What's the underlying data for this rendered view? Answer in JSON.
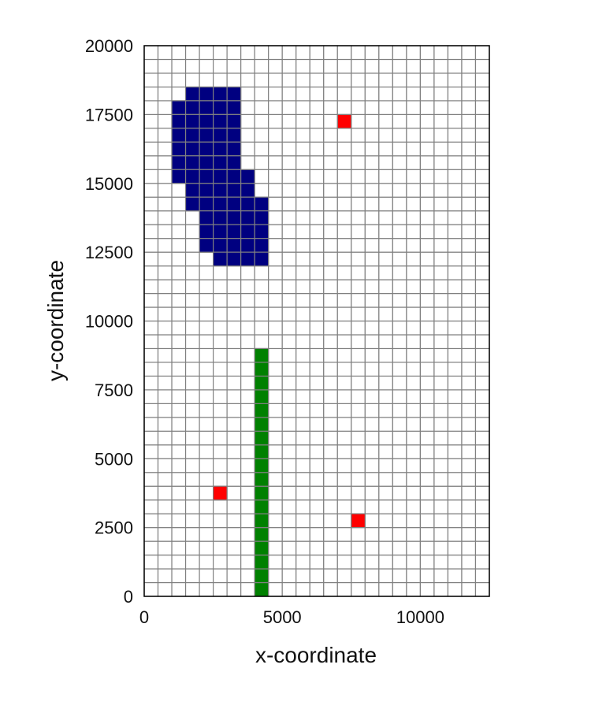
{
  "chart_data": {
    "type": "heatmap",
    "title": "",
    "xlabel": "x-coordinate",
    "ylabel": "y-coordinate",
    "xlim": [
      0,
      12500
    ],
    "ylim": [
      0,
      20000
    ],
    "cell_size": 500,
    "x_ticks": [
      0,
      5000,
      10000
    ],
    "y_ticks": [
      0,
      2500,
      5000,
      7500,
      10000,
      12500,
      15000,
      17500,
      20000
    ],
    "grid": true,
    "colors": {
      "background_cell": "#ffffff",
      "grid_line": "#808080",
      "frame": "#000000",
      "zone_a": "#000080",
      "zone_b": "#008000",
      "points": "#ff0000"
    },
    "zone_a_rows": [
      {
        "y": 18000,
        "x_from": 1500,
        "x_to": 3500
      },
      {
        "y": 17500,
        "x_from": 1000,
        "x_to": 3500
      },
      {
        "y": 17000,
        "x_from": 1000,
        "x_to": 3500
      },
      {
        "y": 16500,
        "x_from": 1000,
        "x_to": 3500
      },
      {
        "y": 16000,
        "x_from": 1000,
        "x_to": 3500
      },
      {
        "y": 15500,
        "x_from": 1000,
        "x_to": 3500
      },
      {
        "y": 15000,
        "x_from": 1000,
        "x_to": 4000
      },
      {
        "y": 14500,
        "x_from": 1500,
        "x_to": 4000
      },
      {
        "y": 14000,
        "x_from": 1500,
        "x_to": 4500
      },
      {
        "y": 13500,
        "x_from": 2000,
        "x_to": 4500
      },
      {
        "y": 13000,
        "x_from": 2000,
        "x_to": 4500
      },
      {
        "y": 12500,
        "x_from": 2000,
        "x_to": 4500
      },
      {
        "y": 12000,
        "x_from": 2500,
        "x_to": 4500
      }
    ],
    "zone_b_column": {
      "x": 4000,
      "y_from": 0,
      "y_to": 9000
    },
    "points": [
      {
        "x": 2500,
        "y": 3500
      },
      {
        "x": 7000,
        "y": 17000
      },
      {
        "x": 7500,
        "y": 2500
      }
    ]
  }
}
